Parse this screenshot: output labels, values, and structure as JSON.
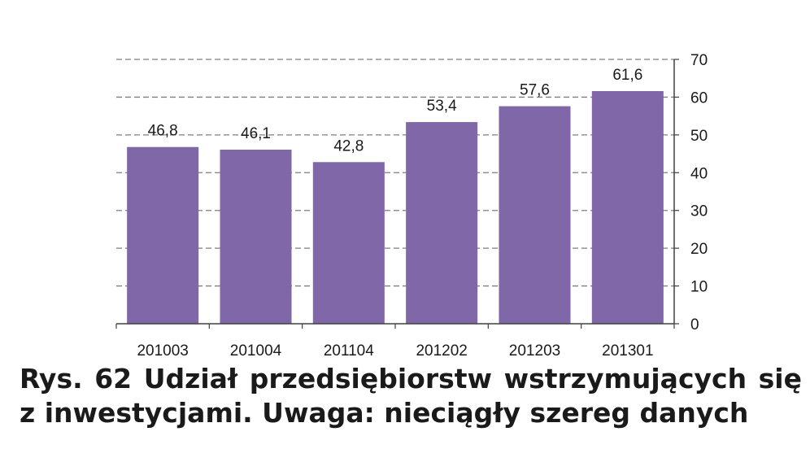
{
  "caption": "Rys. 62 Udział przedsiębiorstw wstrzymujących się z inwestycjami. Uwaga: nieciągły szereg danych",
  "chart_data": {
    "type": "bar",
    "categories": [
      "201003",
      "201004",
      "201104",
      "201202",
      "201203",
      "201301"
    ],
    "values": [
      46.8,
      46.1,
      42.8,
      53.4,
      57.6,
      61.6
    ],
    "value_labels": [
      "46,8",
      "46,1",
      "42,8",
      "53,4",
      "57,6",
      "61,6"
    ],
    "title": "",
    "xlabel": "",
    "ylabel": "",
    "ylim": [
      0,
      70
    ],
    "yticks": [
      0,
      10,
      20,
      30,
      40,
      50,
      60,
      70
    ],
    "y_axis_side": "right",
    "grid": "dashed horizontal",
    "legend": "none",
    "bar_color": "#8068A8",
    "grid_color": "#7f7f7f",
    "axis_color": "#404040"
  }
}
